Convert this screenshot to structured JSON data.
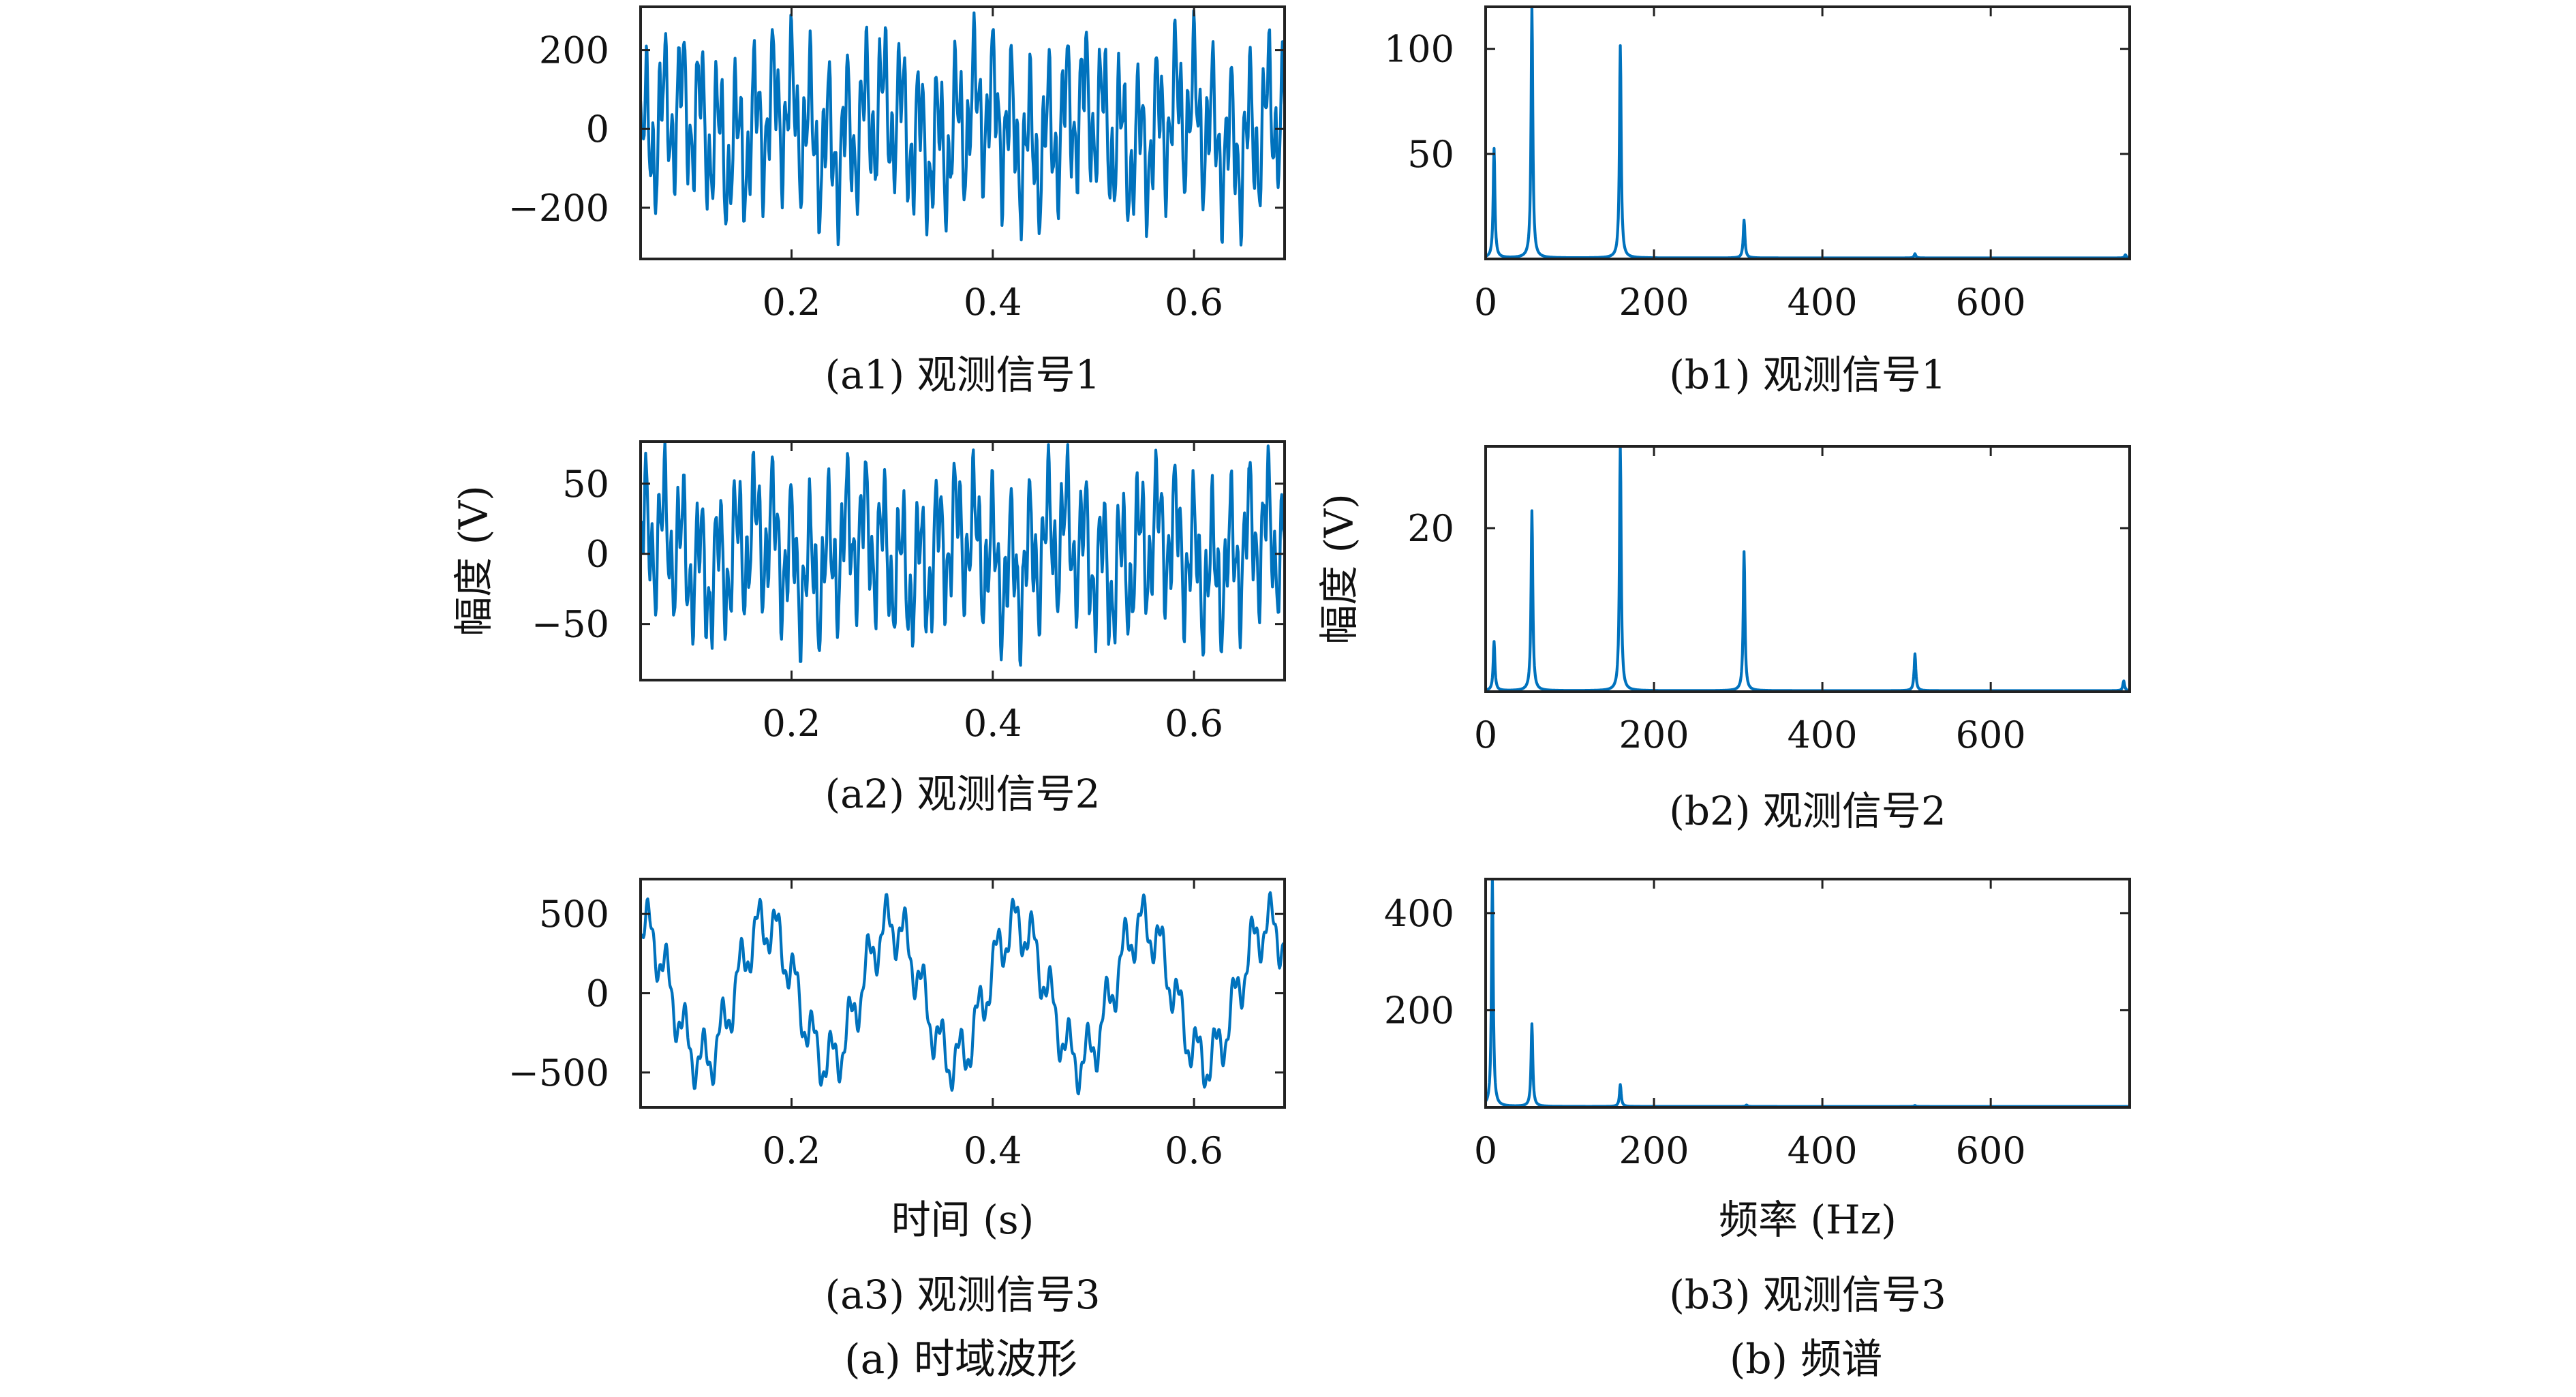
{
  "figure": {
    "group_captions": [
      "(a) 时域波形",
      "(b) 频谱"
    ]
  },
  "colors": {
    "trace": "#0072BD",
    "axis": "#222222"
  },
  "chart_data": [
    {
      "id": "a1",
      "type": "line",
      "caption": "(a1) 观测信号1",
      "xlabel": "",
      "ylabel": "",
      "xlim": [
        0.05,
        0.69
      ],
      "ylim": [
        -330,
        310
      ],
      "xticks": [
        0.2,
        0.4,
        0.6
      ],
      "xtick_labels": [
        "0.2",
        "0.4",
        "0.6"
      ],
      "yticks": [
        200,
        0,
        -200
      ],
      "ytick_labels": [
        "200",
        "0",
        "−200"
      ],
      "grid": false,
      "signal": "time",
      "amplitude": 300,
      "seed": 11
    },
    {
      "id": "b1",
      "type": "line",
      "caption": "(b1) 观测信号1",
      "xlabel": "",
      "ylabel": "",
      "xlim": [
        0,
        765
      ],
      "ylim": [
        0,
        120
      ],
      "xticks": [
        0,
        200,
        400,
        600
      ],
      "xtick_labels": [
        "0",
        "200",
        "400",
        "600"
      ],
      "yticks": [
        100,
        50
      ],
      "ytick_labels": [
        "100",
        "50"
      ],
      "grid": false,
      "signal": "spectrum",
      "peaks": [
        [
          10,
          52
        ],
        [
          55,
          120
        ],
        [
          160,
          101
        ],
        [
          307,
          18
        ],
        [
          510,
          2
        ],
        [
          760,
          1.5
        ]
      ]
    },
    {
      "id": "a2",
      "type": "line",
      "caption": "(a2) 观测信号2",
      "xlabel": "",
      "ylabel": "幅度 (V)",
      "xlim": [
        0.05,
        0.69
      ],
      "ylim": [
        -90,
        80
      ],
      "xticks": [
        0.2,
        0.4,
        0.6
      ],
      "xtick_labels": [
        "0.2",
        "0.4",
        "0.6"
      ],
      "yticks": [
        50,
        0,
        -50
      ],
      "ytick_labels": [
        "50",
        "0",
        "−50"
      ],
      "grid": false,
      "signal": "time",
      "amplitude": 80,
      "seed": 23
    },
    {
      "id": "b2",
      "type": "line",
      "caption": "(b2) 观测信号2",
      "xlabel": "",
      "ylabel": "幅度 (V)",
      "xlim": [
        0,
        765
      ],
      "ylim": [
        0,
        30
      ],
      "xticks": [
        0,
        200,
        400,
        600
      ],
      "xtick_labels": [
        "0",
        "200",
        "400",
        "600"
      ],
      "yticks": [
        20
      ],
      "ytick_labels": [
        "20"
      ],
      "grid": false,
      "signal": "spectrum",
      "peaks": [
        [
          10,
          6
        ],
        [
          55,
          22
        ],
        [
          160,
          30
        ],
        [
          307,
          17
        ],
        [
          510,
          4.5
        ],
        [
          758,
          1.2
        ]
      ]
    },
    {
      "id": "a3",
      "type": "line",
      "caption": "(a3) 观测信号3",
      "xlabel": "时间 (s)",
      "ylabel": "",
      "xlim": [
        0.05,
        0.69
      ],
      "ylim": [
        -720,
        720
      ],
      "xticks": [
        0.2,
        0.4,
        0.6
      ],
      "xtick_labels": [
        "0.2",
        "0.4",
        "0.6"
      ],
      "yticks": [
        500,
        0,
        -500
      ],
      "ytick_labels": [
        "500",
        "0",
        "−500"
      ],
      "grid": false,
      "signal": "time3"
    },
    {
      "id": "b3",
      "type": "line",
      "caption": "(b3) 观测信号3",
      "xlabel": "频率 (Hz)",
      "ylabel": "",
      "xlim": [
        0,
        765
      ],
      "ylim": [
        0,
        470
      ],
      "xticks": [
        0,
        200,
        400,
        600
      ],
      "xtick_labels": [
        "0",
        "200",
        "400",
        "600"
      ],
      "yticks": [
        400,
        200
      ],
      "ytick_labels": [
        "400",
        "200"
      ],
      "grid": false,
      "signal": "spectrum",
      "peaks": [
        [
          8,
          470
        ],
        [
          55,
          170
        ],
        [
          160,
          45
        ],
        [
          310,
          3
        ],
        [
          510,
          2
        ]
      ]
    }
  ]
}
